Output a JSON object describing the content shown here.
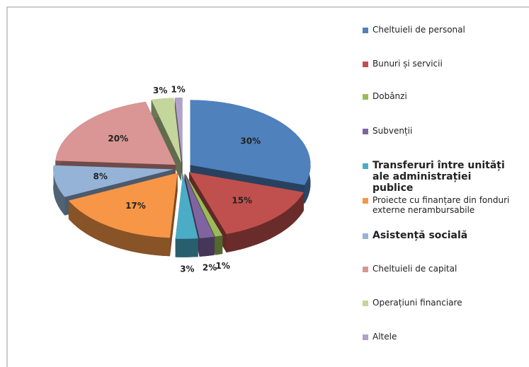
{
  "chart_data": {
    "type": "pie3d",
    "categories": [
      "Cheltuieli de personal",
      "Bunuri și servicii",
      "Dobânzi",
      "Subvenții",
      "Transferuri între unități ale administrației publice",
      "Proiecte cu finanțare din fonduri externe nerambursabile",
      "Asistență socială",
      "Cheltuieli de capital",
      "Operațiuni financiare",
      "Altele"
    ],
    "values": [
      30,
      15,
      1,
      2,
      3,
      17,
      8,
      20,
      3,
      1
    ],
    "value_labels": [
      "30%",
      "15%",
      "1%",
      "2%",
      "3%",
      "17%",
      "8%",
      "20%",
      "3%",
      "1%"
    ],
    "colors": [
      "#4f81bd",
      "#c0504d",
      "#9bbb59",
      "#8064a2",
      "#4bacc6",
      "#f79646",
      "#95b3d7",
      "#d99694",
      "#c3d69b",
      "#b3a2c7"
    ],
    "legend": "right"
  }
}
